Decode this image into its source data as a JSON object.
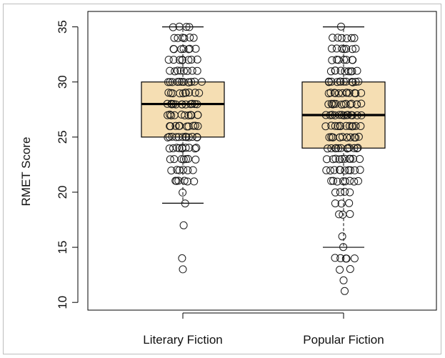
{
  "chart_data": {
    "type": "boxplot",
    "title": "",
    "xlabel": "",
    "ylabel": "RMET Score",
    "ylim": [
      9.3,
      36.4
    ],
    "yticks": [
      10,
      15,
      20,
      25,
      30,
      35
    ],
    "categories": [
      "Literary Fiction",
      "Popular Fiction"
    ],
    "box_fill": "#f5deb3",
    "box_stroke": "#000000",
    "boxes": [
      {
        "name": "Literary Fiction",
        "whisker_low": 19,
        "q1": 25,
        "median": 28,
        "q3": 30,
        "whisker_high": 35,
        "outliers": [
          13,
          14,
          17
        ],
        "points": [
          {
            "y": 35,
            "n": 4
          },
          {
            "y": 34,
            "n": 6
          },
          {
            "y": 33,
            "n": 7
          },
          {
            "y": 32,
            "n": 8
          },
          {
            "y": 31,
            "n": 8
          },
          {
            "y": 30,
            "n": 12
          },
          {
            "y": 29,
            "n": 10
          },
          {
            "y": 28,
            "n": 12
          },
          {
            "y": 27,
            "n": 11
          },
          {
            "y": 26,
            "n": 10
          },
          {
            "y": 25,
            "n": 12
          },
          {
            "y": 24,
            "n": 10
          },
          {
            "y": 23,
            "n": 7
          },
          {
            "y": 22,
            "n": 6
          },
          {
            "y": 21,
            "n": 6
          },
          {
            "y": 20,
            "n": 1
          },
          {
            "y": 19,
            "n": 1
          },
          {
            "y": 17,
            "n": 1
          },
          {
            "y": 14,
            "n": 1
          },
          {
            "y": 13,
            "n": 1
          }
        ]
      },
      {
        "name": "Popular Fiction",
        "whisker_low": 15,
        "q1": 24,
        "median": 27,
        "q3": 30,
        "whisker_high": 35,
        "outliers": [
          11,
          12,
          13,
          14
        ],
        "points": [
          {
            "y": 35,
            "n": 1
          },
          {
            "y": 34,
            "n": 6
          },
          {
            "y": 33,
            "n": 7
          },
          {
            "y": 32,
            "n": 7
          },
          {
            "y": 31,
            "n": 9
          },
          {
            "y": 30,
            "n": 12
          },
          {
            "y": 29,
            "n": 12
          },
          {
            "y": 28,
            "n": 13
          },
          {
            "y": 27,
            "n": 13
          },
          {
            "y": 26,
            "n": 12
          },
          {
            "y": 25,
            "n": 13
          },
          {
            "y": 24,
            "n": 12
          },
          {
            "y": 23,
            "n": 10
          },
          {
            "y": 22,
            "n": 10
          },
          {
            "y": 21,
            "n": 8
          },
          {
            "y": 20,
            "n": 4
          },
          {
            "y": 19,
            "n": 3
          },
          {
            "y": 18,
            "n": 3
          },
          {
            "y": 16,
            "n": 1
          },
          {
            "y": 15,
            "n": 1
          },
          {
            "y": 14,
            "n": 5
          },
          {
            "y": 13,
            "n": 2
          },
          {
            "y": 12,
            "n": 1
          },
          {
            "y": 11,
            "n": 1
          }
        ]
      }
    ]
  }
}
